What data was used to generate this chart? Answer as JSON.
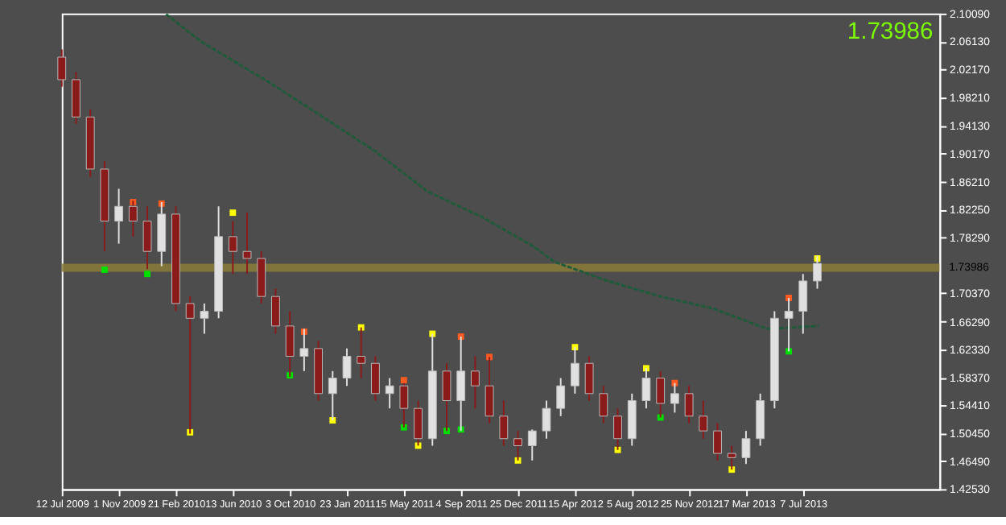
{
  "chart_data": {
    "type": "candlestick",
    "x": [
      "2009-07-12",
      "2009-08-09",
      "2009-09-06",
      "2009-10-04",
      "2009-11-01",
      "2009-11-29",
      "2009-12-27",
      "2010-01-24",
      "2010-02-21",
      "2010-03-21",
      "2010-04-18",
      "2010-05-16",
      "2010-06-13",
      "2010-07-11",
      "2010-08-08",
      "2010-09-05",
      "2010-10-03",
      "2010-10-31",
      "2010-11-28",
      "2010-12-26",
      "2011-01-23",
      "2011-02-20",
      "2011-03-20",
      "2011-04-17",
      "2011-05-15",
      "2011-06-12",
      "2011-07-10",
      "2011-08-07",
      "2011-09-04",
      "2011-10-02",
      "2011-10-30",
      "2011-11-27",
      "2011-12-25",
      "2012-01-22",
      "2012-02-19",
      "2012-03-18",
      "2012-04-15",
      "2012-05-13",
      "2012-06-10",
      "2012-07-08",
      "2012-08-05",
      "2012-09-02",
      "2012-09-30",
      "2012-10-28",
      "2012-11-25",
      "2012-12-23",
      "2013-01-20",
      "2013-02-17",
      "2013-03-17",
      "2013-04-14",
      "2013-05-12",
      "2013-06-09",
      "2013-07-07",
      "2013-08-04"
    ],
    "ohlc": [
      [
        2.039,
        2.05,
        1.997,
        2.007
      ],
      [
        2.007,
        2.018,
        1.944,
        1.954
      ],
      [
        1.954,
        1.965,
        1.869,
        1.88
      ],
      [
        1.88,
        1.891,
        1.763,
        1.806
      ],
      [
        1.806,
        1.852,
        1.774,
        1.827
      ],
      [
        1.827,
        1.835,
        1.784,
        1.806
      ],
      [
        1.806,
        1.827,
        1.738,
        1.763
      ],
      [
        1.763,
        1.833,
        1.742,
        1.816
      ],
      [
        1.816,
        1.827,
        1.678,
        1.689
      ],
      [
        1.689,
        1.699,
        1.504,
        1.668
      ],
      [
        1.668,
        1.689,
        1.646,
        1.678
      ],
      [
        1.678,
        1.827,
        1.668,
        1.784
      ],
      [
        1.784,
        1.806,
        1.731,
        1.763
      ],
      [
        1.763,
        1.818,
        1.731,
        1.753
      ],
      [
        1.753,
        1.763,
        1.689,
        1.699
      ],
      [
        1.699,
        1.71,
        1.646,
        1.657
      ],
      [
        1.657,
        1.678,
        1.585,
        1.614
      ],
      [
        1.614,
        1.653,
        1.593,
        1.625
      ],
      [
        1.625,
        1.636,
        1.551,
        1.561
      ],
      [
        1.561,
        1.593,
        1.523,
        1.583
      ],
      [
        1.583,
        1.625,
        1.572,
        1.614
      ],
      [
        1.614,
        1.655,
        1.583,
        1.604
      ],
      [
        1.604,
        1.614,
        1.551,
        1.561
      ],
      [
        1.561,
        1.583,
        1.54,
        1.572
      ],
      [
        1.572,
        1.576,
        1.513,
        1.54
      ],
      [
        1.54,
        1.551,
        1.487,
        1.497
      ],
      [
        1.497,
        1.646,
        1.487,
        1.593
      ],
      [
        1.593,
        1.604,
        1.508,
        1.551
      ],
      [
        1.551,
        1.642,
        1.508,
        1.593
      ],
      [
        1.593,
        1.614,
        1.54,
        1.572
      ],
      [
        1.572,
        1.613,
        1.519,
        1.529
      ],
      [
        1.529,
        1.551,
        1.487,
        1.497
      ],
      [
        1.497,
        1.508,
        1.466,
        1.487
      ],
      [
        1.487,
        1.51,
        1.466,
        1.508
      ],
      [
        1.508,
        1.551,
        1.497,
        1.54
      ],
      [
        1.54,
        1.583,
        1.529,
        1.572
      ],
      [
        1.572,
        1.627,
        1.561,
        1.604
      ],
      [
        1.604,
        1.614,
        1.551,
        1.561
      ],
      [
        1.561,
        1.572,
        1.519,
        1.529
      ],
      [
        1.529,
        1.54,
        1.481,
        1.497
      ],
      [
        1.497,
        1.561,
        1.487,
        1.551
      ],
      [
        1.551,
        1.597,
        1.54,
        1.583
      ],
      [
        1.583,
        1.593,
        1.527,
        1.547
      ],
      [
        1.547,
        1.576,
        1.534,
        1.561
      ],
      [
        1.561,
        1.572,
        1.519,
        1.529
      ],
      [
        1.529,
        1.551,
        1.497,
        1.508
      ],
      [
        1.508,
        1.519,
        1.466,
        1.476
      ],
      [
        1.476,
        1.487,
        1.453,
        1.47
      ],
      [
        1.47,
        1.508,
        1.461,
        1.497
      ],
      [
        1.497,
        1.561,
        1.487,
        1.551
      ],
      [
        1.551,
        1.678,
        1.54,
        1.668
      ],
      [
        1.668,
        1.697,
        1.621,
        1.678
      ],
      [
        1.678,
        1.731,
        1.646,
        1.721
      ],
      [
        1.721,
        1.757,
        1.71,
        1.746
      ]
    ],
    "colors": [
      "#8b1a1a",
      "#8b1a1a",
      "#8b1a1a",
      "#8b1a1a",
      "#e0e0e0",
      "#8b1a1a",
      "#8b1a1a",
      "#e0e0e0",
      "#8b1a1a",
      "#8b1a1a",
      "#e0e0e0",
      "#e0e0e0",
      "#8b1a1a",
      "#8b1a1a",
      "#8b1a1a",
      "#8b1a1a",
      "#8b1a1a",
      "#e0e0e0",
      "#8b1a1a",
      "#e0e0e0",
      "#e0e0e0",
      "#8b1a1a",
      "#8b1a1a",
      "#e0e0e0",
      "#8b1a1a",
      "#8b1a1a",
      "#e0e0e0",
      "#8b1a1a",
      "#e0e0e0",
      "#8b1a1a",
      "#8b1a1a",
      "#8b1a1a",
      "#8b1a1a",
      "#e0e0e0",
      "#e0e0e0",
      "#e0e0e0",
      "#e0e0e0",
      "#8b1a1a",
      "#8b1a1a",
      "#8b1a1a",
      "#e0e0e0",
      "#e0e0e0",
      "#8b1a1a",
      "#e0e0e0",
      "#8b1a1a",
      "#8b1a1a",
      "#8b1a1a",
      "#8b1a1a",
      "#e0e0e0",
      "#e0e0e0",
      "#e0e0e0",
      "#e0e0e0",
      "#e0e0e0",
      "#e0e0e0"
    ],
    "series": [
      {
        "type": "line",
        "color": "#1f5a3a",
        "line_style": "dashed",
        "x": [
          "2010-02-02",
          "2010-04-12",
          "2010-08-24",
          "2010-12-07",
          "2011-03-20",
          "2011-07-01",
          "2011-10-15",
          "2012-01-25",
          "2012-03-06",
          "2012-06-19",
          "2012-09-30",
          "2013-01-11",
          "2013-04-27",
          "2013-08-07"
        ],
        "values": [
          2.1,
          2.061,
          2.003,
          1.954,
          1.905,
          1.848,
          1.812,
          1.77,
          1.748,
          1.721,
          1.699,
          1.682,
          1.653,
          1.657
        ]
      },
      {
        "type": "scatter",
        "color": "#ff5a1f",
        "marker": "square",
        "x": [
          "2009-11-29",
          "2010-01-24",
          "2010-10-31",
          "2011-05-15",
          "2011-09-04",
          "2011-10-30",
          "2012-10-28",
          "2013-06-09"
        ],
        "values": [
          1.833,
          1.831,
          1.649,
          1.58,
          1.642,
          1.613,
          1.576,
          1.697
        ]
      },
      {
        "type": "scatter",
        "color": "#ffff00",
        "marker": "square",
        "x": [
          "2010-03-21",
          "2010-06-13",
          "2010-12-26",
          "2011-02-20",
          "2011-06-12",
          "2011-07-10",
          "2011-12-25",
          "2012-04-15",
          "2012-07-08",
          "2012-09-02",
          "2013-02-17",
          "2013-08-04"
        ],
        "values": [
          1.506,
          1.818,
          1.523,
          1.655,
          1.487,
          1.646,
          1.466,
          1.627,
          1.481,
          1.597,
          1.453,
          1.753
        ]
      },
      {
        "type": "scatter",
        "color": "#00e000",
        "marker": "square",
        "x": [
          "2009-10-04",
          "2009-12-27",
          "2010-10-03",
          "2011-05-15",
          "2011-08-07",
          "2011-09-04",
          "2012-09-30",
          "2013-06-09"
        ],
        "values": [
          1.737,
          1.731,
          1.587,
          1.513,
          1.508,
          1.51,
          1.527,
          1.621
        ]
      }
    ],
    "ref_lines": [
      {
        "axis": "y",
        "value": 1.73986,
        "label": "1.73986",
        "color": "#8c7c3a"
      }
    ],
    "annotations": [
      "1.73986"
    ],
    "xlim": [
      "2009-07-12",
      "2014-04-01"
    ],
    "xticks": [
      {
        "value": "2009-07-12",
        "label": "12 Jul 2009"
      },
      {
        "value": "2009-11-01",
        "label": "1 Nov 2009"
      },
      {
        "value": "2010-02-21",
        "label": "21 Feb 2010"
      },
      {
        "value": "2010-06-13",
        "label": "13 Jun 2010"
      },
      {
        "value": "2010-10-03",
        "label": "3 Oct 2010"
      },
      {
        "value": "2011-01-23",
        "label": "23 Jan 2011"
      },
      {
        "value": "2011-05-15",
        "label": "15 May 2011"
      },
      {
        "value": "2011-09-04",
        "label": "4 Sep 2011"
      },
      {
        "value": "2011-12-25",
        "label": "25 Dec 2011"
      },
      {
        "value": "2012-04-15",
        "label": "15 Apr 2012"
      },
      {
        "value": "2012-08-05",
        "label": "5 Aug 2012"
      },
      {
        "value": "2012-11-25",
        "label": "25 Nov 2012"
      },
      {
        "value": "2013-03-17",
        "label": "17 Mar 2013"
      },
      {
        "value": "2013-07-07",
        "label": "7 Jul 2013"
      }
    ],
    "ylim": [
      1.4253,
      2.1009
    ],
    "yticks": [
      {
        "value": 1.4253,
        "label": "1.42530"
      },
      {
        "value": 1.4649,
        "label": "1.46490"
      },
      {
        "value": 1.5045,
        "label": "1.50450"
      },
      {
        "value": 1.5441,
        "label": "1.54410"
      },
      {
        "value": 1.5837,
        "label": "1.58370"
      },
      {
        "value": 1.6233,
        "label": "1.62330"
      },
      {
        "value": 1.6629,
        "label": "1.66290"
      },
      {
        "value": 1.7037,
        "label": "1.70370"
      },
      {
        "value": 1.7829,
        "label": "1.78290"
      },
      {
        "value": 1.8225,
        "label": "1.82250"
      },
      {
        "value": 1.8621,
        "label": "1.86210"
      },
      {
        "value": 1.9017,
        "label": "1.90170"
      },
      {
        "value": 1.9413,
        "label": "1.94130"
      },
      {
        "value": 1.9821,
        "label": "1.98210"
      },
      {
        "value": 2.0217,
        "label": "2.02170"
      },
      {
        "value": 2.0613,
        "label": "2.06130"
      },
      {
        "value": 2.1009,
        "label": "2.10090"
      }
    ],
    "grid": false
  }
}
